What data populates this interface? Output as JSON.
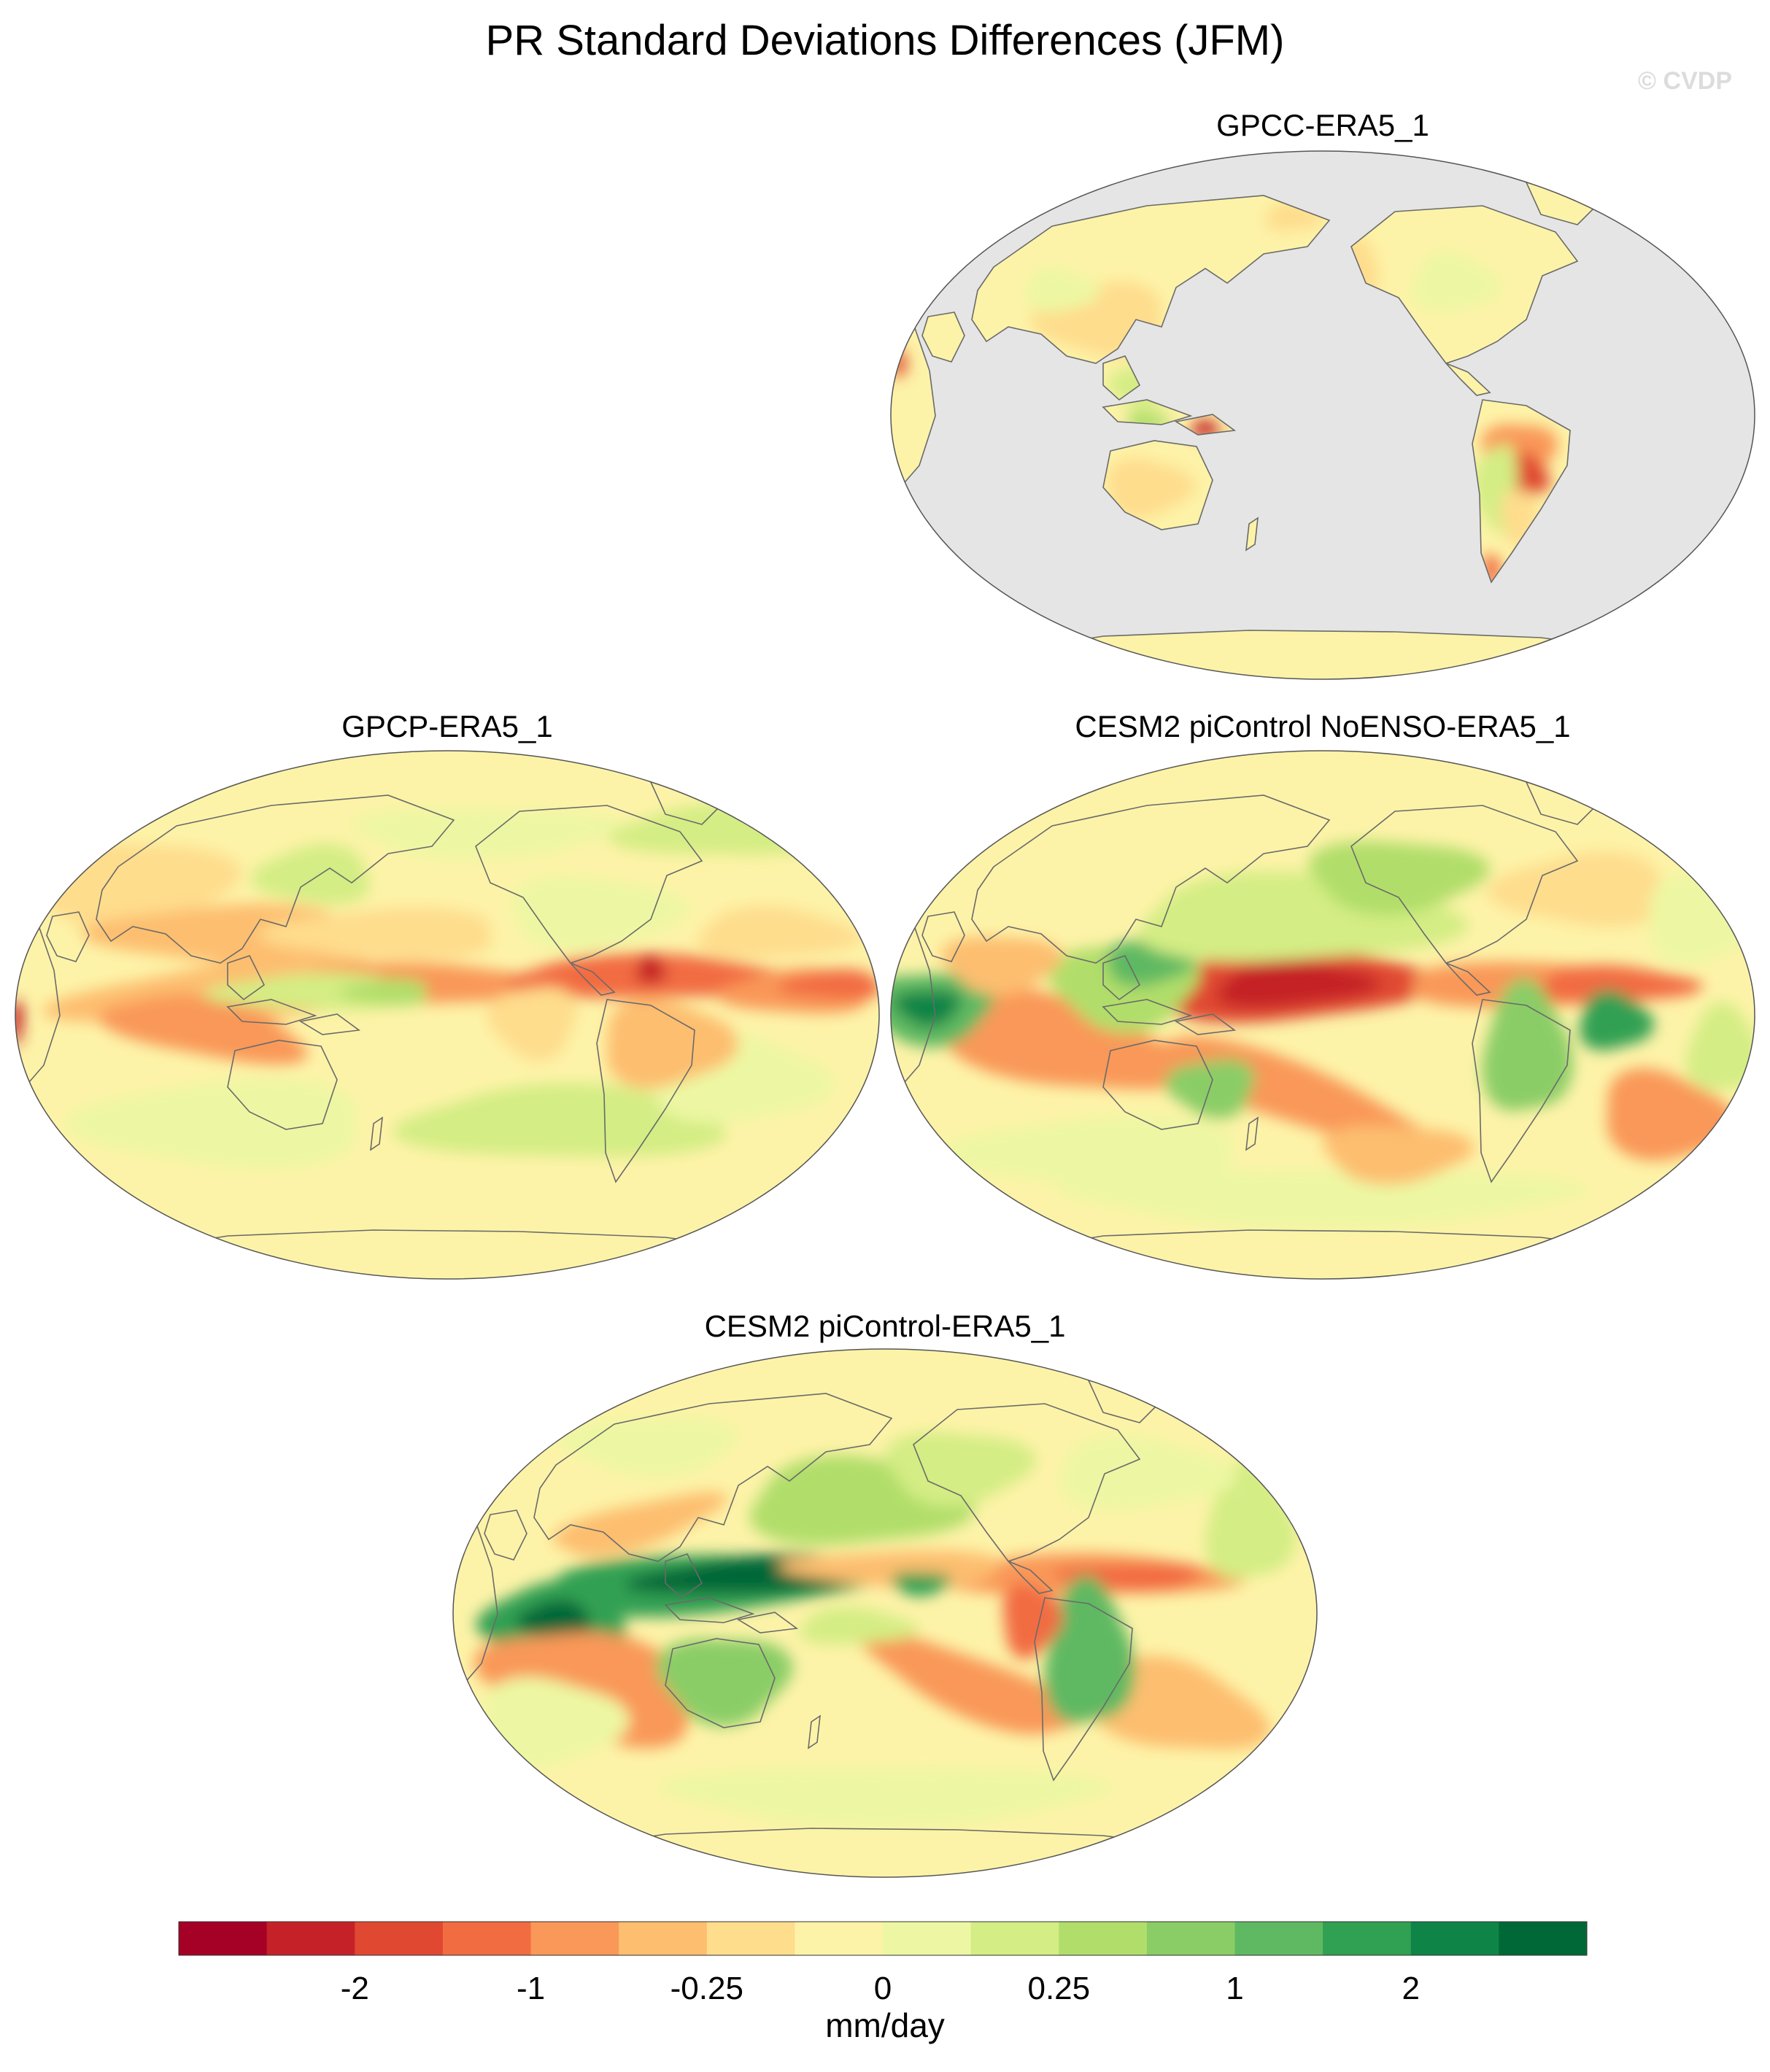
{
  "figure": {
    "title": "PR Standard Deviations Differences (JFM)",
    "watermark": "© CVDP"
  },
  "panels": [
    {
      "id": "gpcc",
      "title": "GPCC-ERA5_1",
      "ocean_masked": true,
      "ocean_color": "#e5e5e5"
    },
    {
      "id": "gpcp",
      "title": "GPCP-ERA5_1",
      "ocean_masked": false
    },
    {
      "id": "noenso",
      "title": "CESM2 piControl NoENSO-ERA5_1",
      "ocean_masked": false
    },
    {
      "id": "picontrol",
      "title": "CESM2 piControl-ERA5_1",
      "ocean_masked": false
    }
  ],
  "map": {
    "projection": "Robinson",
    "central_longitude": 180,
    "field": "JFM precipitation standard deviation difference"
  },
  "colorbar": {
    "units": "mm/day",
    "colors": [
      "#a50026",
      "#c52128",
      "#e04831",
      "#f26c42",
      "#f99858",
      "#fdbe6f",
      "#fedd8d",
      "#fdf3a8",
      "#edf7a3",
      "#d4ed84",
      "#b1de6b",
      "#8acd66",
      "#5fb962",
      "#30a052",
      "#0e8546",
      "#006837"
    ],
    "tick_labels": [
      "-2",
      "-1",
      "-0.25",
      "0",
      "0.25",
      "1",
      "2"
    ],
    "tick_boundary_index": [
      2,
      4,
      6,
      8,
      10,
      12,
      14
    ]
  }
}
